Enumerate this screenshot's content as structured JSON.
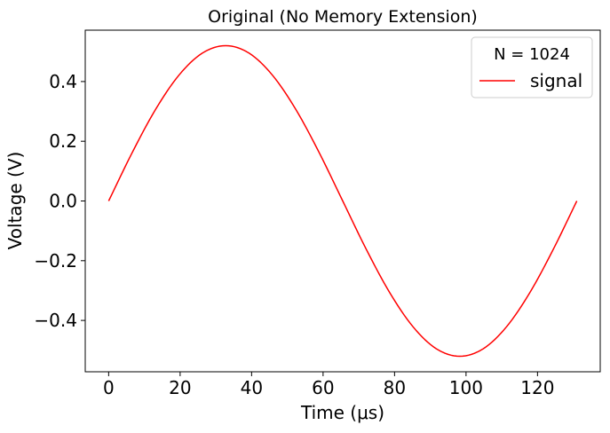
{
  "chart_data": {
    "type": "line",
    "title": "Original (No Memory Extension)",
    "xlabel": "Time (μs)",
    "ylabel": "Voltage (V)",
    "xlim": [
      -6.55,
      137.55
    ],
    "ylim": [
      -0.572,
      0.572
    ],
    "xticks": [
      0,
      20,
      40,
      60,
      80,
      100,
      120
    ],
    "xtick_labels": [
      "0",
      "20",
      "40",
      "60",
      "80",
      "100",
      "120"
    ],
    "yticks": [
      -0.4,
      -0.2,
      0.0,
      0.2,
      0.4
    ],
    "ytick_labels": [
      "−0.4",
      "−0.2",
      "0.0",
      "0.2",
      "0.4"
    ],
    "grid": false,
    "legend": {
      "title": "N = 1024",
      "placement": "upper right"
    },
    "series": [
      {
        "name": "signal",
        "color": "#ff0000",
        "x": [
          0,
          6.55,
          13.1,
          19.65,
          26.2,
          32.75,
          39.3,
          45.85,
          52.4,
          58.95,
          65.5,
          72.05,
          78.6,
          85.15,
          91.7,
          98.25,
          104.8,
          111.35,
          117.9,
          124.45,
          131.0
        ],
        "y": [
          0.0,
          0.161,
          0.306,
          0.421,
          0.495,
          0.52,
          0.495,
          0.421,
          0.306,
          0.161,
          0.0,
          -0.161,
          -0.306,
          -0.421,
          -0.495,
          -0.52,
          -0.495,
          -0.421,
          -0.306,
          -0.161,
          0.0
        ]
      }
    ]
  }
}
